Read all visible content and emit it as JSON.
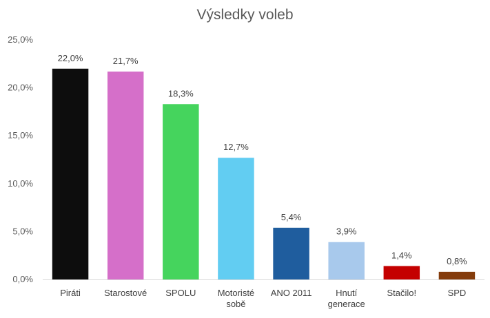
{
  "chart_data": {
    "type": "bar",
    "title": "Výsledky voleb",
    "xlabel": "",
    "ylabel": "",
    "ylim": [
      0,
      25
    ],
    "grid": false,
    "legend": "none",
    "y_ticks": [
      "0,0%",
      "5,0%",
      "10,0%",
      "15,0%",
      "20,0%",
      "25,0%"
    ],
    "categories": [
      [
        "Piráti"
      ],
      [
        "Starostové"
      ],
      [
        "SPOLU"
      ],
      [
        "Motoristé",
        "sobě"
      ],
      [
        "ANO 2011"
      ],
      [
        "Hnutí",
        "generace"
      ],
      [
        "Stačilo!"
      ],
      [
        "SPD"
      ]
    ],
    "values": [
      22.0,
      21.7,
      18.3,
      12.7,
      5.4,
      3.9,
      1.4,
      0.8
    ],
    "data_labels": [
      "22,0%",
      "21,7%",
      "18,3%",
      "12,7%",
      "5,4%",
      "3,9%",
      "1,4%",
      "0,8%"
    ],
    "colors": [
      "#0d0d0d",
      "#d56fc9",
      "#45d45d",
      "#62cdf2",
      "#1f5d9e",
      "#a8c9ec",
      "#c40000",
      "#843c0c"
    ]
  }
}
